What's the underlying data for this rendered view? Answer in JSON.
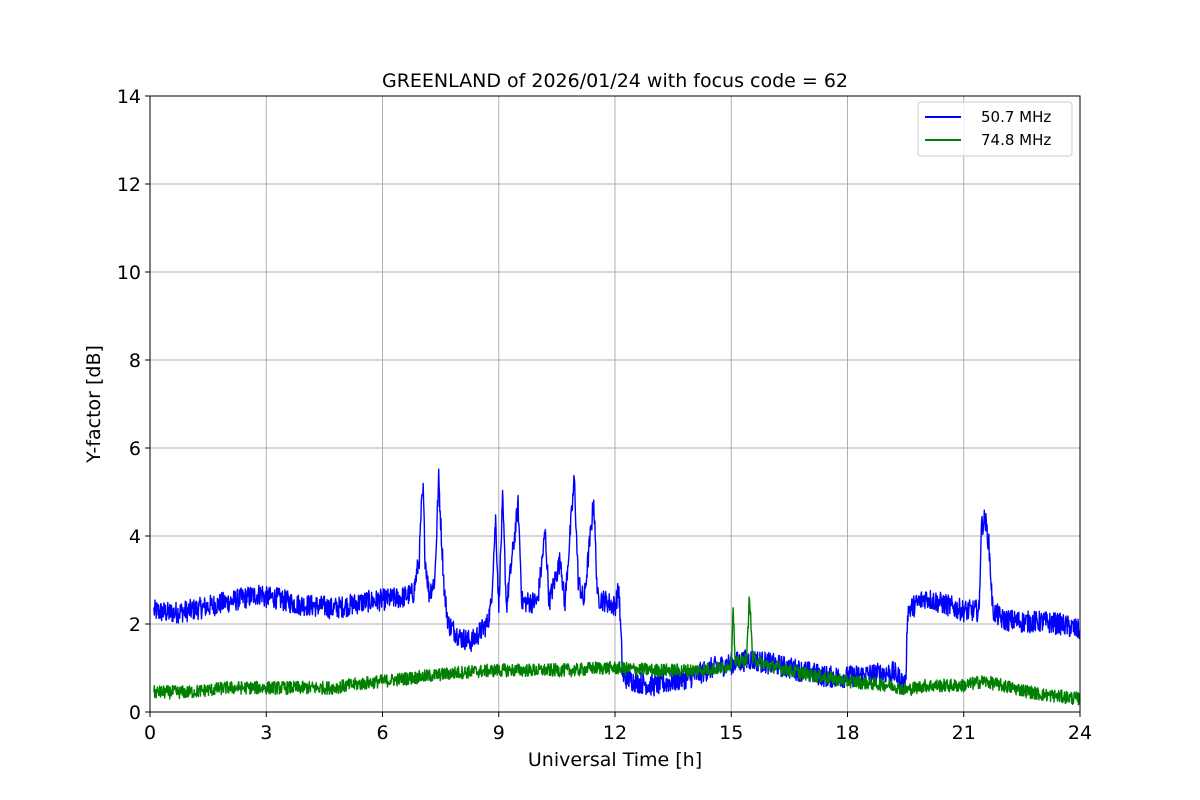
{
  "chart_data": {
    "type": "line",
    "title": "GREENLAND of 2026/01/24 with focus code = 62",
    "xlabel": "Universal Time [h]",
    "ylabel": "Y-factor [dB]",
    "xlim": [
      0,
      24
    ],
    "ylim": [
      0,
      14
    ],
    "xticks": [
      "0",
      "3",
      "6",
      "9",
      "12",
      "15",
      "18",
      "21",
      "24"
    ],
    "yticks": [
      "0",
      "2",
      "4",
      "6",
      "8",
      "10",
      "12",
      "14"
    ],
    "grid": true,
    "legend_position": "top-right",
    "series": [
      {
        "name": "50.7 MHz",
        "color": "#0000ff",
        "noise_amplitude": 0.25,
        "points": [
          [
            0.1,
            2.3
          ],
          [
            0.5,
            2.25
          ],
          [
            1.0,
            2.3
          ],
          [
            1.5,
            2.4
          ],
          [
            2.0,
            2.5
          ],
          [
            2.5,
            2.6
          ],
          [
            2.9,
            2.7
          ],
          [
            2.95,
            2.6
          ],
          [
            3.2,
            2.6
          ],
          [
            3.8,
            2.45
          ],
          [
            4.4,
            2.4
          ],
          [
            4.5,
            2.4
          ],
          [
            4.7,
            2.35
          ],
          [
            5.0,
            2.4
          ],
          [
            5.5,
            2.5
          ],
          [
            6.0,
            2.55
          ],
          [
            6.5,
            2.6
          ],
          [
            6.8,
            2.7
          ],
          [
            6.95,
            3.5
          ],
          [
            7.0,
            4.6
          ],
          [
            7.05,
            5.0
          ],
          [
            7.1,
            3.5
          ],
          [
            7.2,
            2.7
          ],
          [
            7.35,
            3.0
          ],
          [
            7.45,
            5.3
          ],
          [
            7.52,
            4.0
          ],
          [
            7.6,
            2.7
          ],
          [
            7.7,
            2.0
          ],
          [
            8.0,
            1.7
          ],
          [
            8.3,
            1.6
          ],
          [
            8.5,
            1.8
          ],
          [
            8.7,
            2.0
          ],
          [
            8.8,
            2.4
          ],
          [
            8.92,
            4.4
          ],
          [
            9.0,
            2.4
          ],
          [
            9.1,
            4.8
          ],
          [
            9.2,
            2.4
          ],
          [
            9.5,
            4.7
          ],
          [
            9.6,
            2.5
          ],
          [
            10.0,
            2.5
          ],
          [
            10.2,
            4.1
          ],
          [
            10.3,
            2.5
          ],
          [
            10.6,
            3.5
          ],
          [
            10.7,
            2.4
          ],
          [
            10.95,
            5.3
          ],
          [
            11.05,
            3.0
          ],
          [
            11.2,
            2.5
          ],
          [
            11.45,
            4.8
          ],
          [
            11.55,
            2.6
          ],
          [
            11.8,
            2.5
          ],
          [
            12.0,
            2.4
          ],
          [
            12.1,
            2.8
          ],
          [
            12.2,
            0.8
          ],
          [
            12.5,
            0.7
          ],
          [
            13.0,
            0.6
          ],
          [
            13.5,
            0.7
          ],
          [
            14.0,
            0.8
          ],
          [
            14.5,
            1.0
          ],
          [
            15.0,
            1.1
          ],
          [
            15.5,
            1.2
          ],
          [
            16.0,
            1.1
          ],
          [
            16.5,
            1.0
          ],
          [
            17.0,
            0.9
          ],
          [
            17.5,
            0.8
          ],
          [
            18.0,
            0.8
          ],
          [
            18.5,
            0.85
          ],
          [
            19.2,
            0.9
          ],
          [
            19.5,
            0.6
          ],
          [
            19.55,
            2.3
          ],
          [
            20.0,
            2.6
          ],
          [
            20.5,
            2.45
          ],
          [
            21.0,
            2.3
          ],
          [
            21.4,
            2.3
          ],
          [
            21.45,
            4.2
          ],
          [
            21.55,
            4.4
          ],
          [
            21.65,
            3.8
          ],
          [
            21.75,
            2.3
          ],
          [
            22.0,
            2.1
          ],
          [
            22.5,
            2.05
          ],
          [
            23.0,
            2.05
          ],
          [
            23.5,
            2.0
          ],
          [
            24.0,
            1.85
          ]
        ]
      },
      {
        "name": "74.8 MHz",
        "color": "#008000",
        "noise_amplitude": 0.15,
        "points": [
          [
            0.1,
            0.45
          ],
          [
            1.0,
            0.45
          ],
          [
            2.0,
            0.55
          ],
          [
            2.9,
            0.55
          ],
          [
            3.2,
            0.55
          ],
          [
            4.4,
            0.55
          ],
          [
            4.7,
            0.55
          ],
          [
            5.5,
            0.65
          ],
          [
            6.0,
            0.7
          ],
          [
            7.0,
            0.8
          ],
          [
            8.0,
            0.9
          ],
          [
            9.0,
            0.95
          ],
          [
            10.0,
            0.95
          ],
          [
            11.0,
            0.95
          ],
          [
            11.5,
            1.0
          ],
          [
            12.0,
            1.0
          ],
          [
            13.0,
            0.95
          ],
          [
            14.0,
            0.95
          ],
          [
            14.8,
            1.0
          ],
          [
            15.0,
            1.1
          ],
          [
            15.05,
            2.4
          ],
          [
            15.1,
            1.1
          ],
          [
            15.4,
            1.2
          ],
          [
            15.47,
            2.7
          ],
          [
            15.55,
            1.2
          ],
          [
            16.0,
            1.05
          ],
          [
            16.5,
            0.95
          ],
          [
            17.0,
            0.85
          ],
          [
            18.0,
            0.7
          ],
          [
            19.2,
            0.6
          ],
          [
            19.5,
            0.5
          ],
          [
            20.0,
            0.6
          ],
          [
            21.0,
            0.6
          ],
          [
            21.5,
            0.7
          ],
          [
            22.0,
            0.6
          ],
          [
            23.0,
            0.4
          ],
          [
            24.0,
            0.3
          ]
        ]
      }
    ]
  }
}
